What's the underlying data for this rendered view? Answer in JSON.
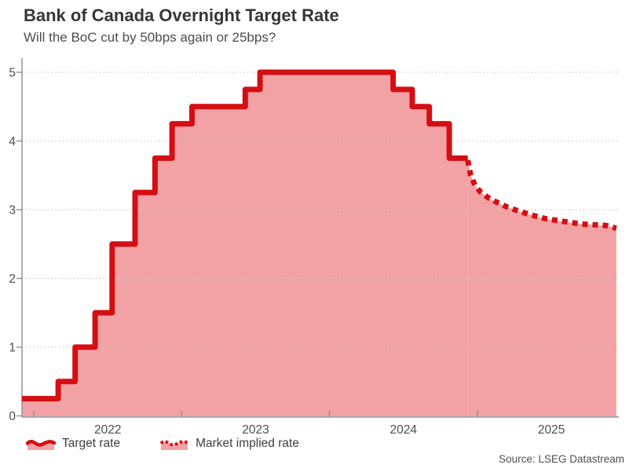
{
  "header": {
    "title": "Bank of Canada Overnight Target Rate",
    "subtitle": "Will the BoC cut by 50bps again or 25bps?"
  },
  "legend": {
    "items": [
      {
        "label": "Target rate",
        "style": "solid"
      },
      {
        "label": "Market implied rate",
        "style": "dotted"
      }
    ]
  },
  "source": {
    "credit": "Source: LSEG Datastream"
  },
  "colors": {
    "line": "#d40f14",
    "fill": "#f2a2a4",
    "axis": "#8f8f8f",
    "grid": "#c9c9c9",
    "tick_text": "#4e4e4e"
  },
  "chart_data": {
    "type": "line",
    "title": "Bank of Canada Overnight Target Rate",
    "subtitle": "Will the BoC cut by 50bps again or 25bps?",
    "xlabel": "",
    "ylabel": "",
    "ylim": [
      0,
      5
    ],
    "yticks": [
      0,
      1,
      2,
      3,
      4,
      5
    ],
    "xticks": [
      2022,
      2023,
      2024,
      2025
    ],
    "x_range": [
      2021.92,
      2025.94
    ],
    "grid": "horizontal-dotted",
    "legend_position": "bottom-left",
    "units": "percent",
    "series": [
      {
        "name": "Target rate",
        "step": true,
        "dash": null,
        "area": true,
        "line_name": "target-rate-line",
        "area_name": "target-rate-area",
        "points": [
          [
            2021.92,
            0.25
          ],
          [
            2022.165,
            0.5
          ],
          [
            2022.28,
            1.0
          ],
          [
            2022.415,
            1.5
          ],
          [
            2022.53,
            2.5
          ],
          [
            2022.685,
            3.25
          ],
          [
            2022.82,
            3.75
          ],
          [
            2022.935,
            4.25
          ],
          [
            2023.07,
            4.5
          ],
          [
            2023.43,
            4.75
          ],
          [
            2023.53,
            5.0
          ],
          [
            2024.43,
            4.75
          ],
          [
            2024.56,
            4.5
          ],
          [
            2024.675,
            4.25
          ],
          [
            2024.81,
            3.75
          ],
          [
            2024.935,
            3.75
          ]
        ]
      },
      {
        "name": "Market implied rate",
        "step": false,
        "dash": "7 6",
        "area": true,
        "line_name": "market-implied-line",
        "area_name": "market-implied-area",
        "points": [
          [
            2024.935,
            3.72
          ],
          [
            2024.955,
            3.5
          ],
          [
            2024.985,
            3.35
          ],
          [
            2025.02,
            3.26
          ],
          [
            2025.07,
            3.18
          ],
          [
            2025.13,
            3.11
          ],
          [
            2025.2,
            3.04
          ],
          [
            2025.28,
            2.98
          ],
          [
            2025.37,
            2.92
          ],
          [
            2025.46,
            2.87
          ],
          [
            2025.55,
            2.84
          ],
          [
            2025.64,
            2.81
          ],
          [
            2025.72,
            2.79
          ],
          [
            2025.8,
            2.78
          ],
          [
            2025.87,
            2.77
          ],
          [
            2025.94,
            2.73
          ]
        ]
      }
    ]
  }
}
